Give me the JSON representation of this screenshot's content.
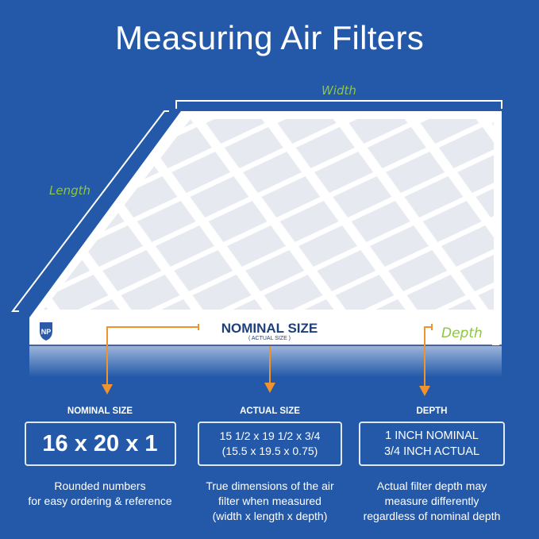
{
  "title": "Measuring Air Filters",
  "diagram": {
    "width_label": "Width",
    "length_label": "Length",
    "depth_label": "Depth",
    "front_title": "NOMINAL SIZE",
    "front_subtitle": "( ACTUAL SIZE )",
    "logo": "NP",
    "colors": {
      "background": "#2359a8",
      "arrow": "#f0922e",
      "label": "#8cc63f",
      "front_text": "#1f3f7a"
    }
  },
  "columns": [
    {
      "heading": "NOMINAL SIZE",
      "lines": [
        "16 x 20 x 1"
      ],
      "desc": [
        "Rounded numbers",
        "for easy ordering & reference"
      ]
    },
    {
      "heading": "ACTUAL SIZE",
      "lines": [
        "15 1/2 x 19 1/2 x 3/4",
        "(15.5 x 19.5 x 0.75)"
      ],
      "desc": [
        "True dimensions of the air",
        "filter when measured",
        "(width x length x depth)"
      ]
    },
    {
      "heading": "DEPTH",
      "lines": [
        "1 INCH NOMINAL",
        "3/4 INCH ACTUAL"
      ],
      "desc": [
        "Actual filter depth may",
        "measure differently",
        "regardless of nominal depth"
      ]
    }
  ]
}
